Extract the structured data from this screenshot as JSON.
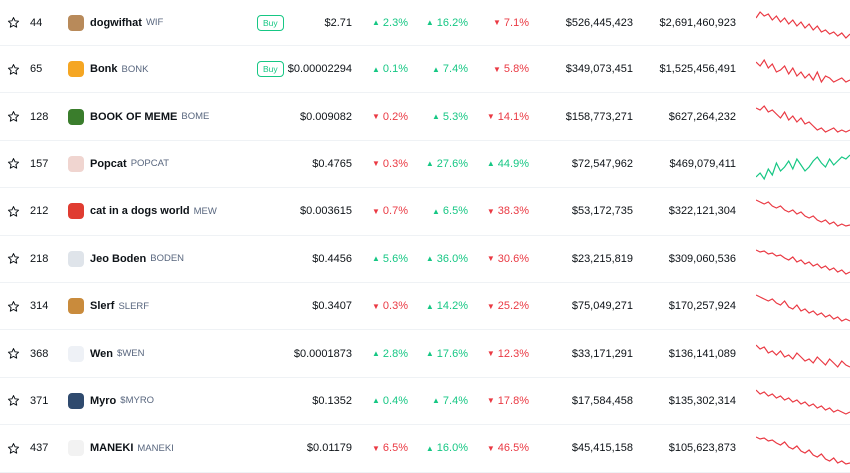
{
  "colors": {
    "up": "#16c784",
    "down": "#ea3943"
  },
  "rows": [
    {
      "rank": "44",
      "name": "dogwifhat",
      "symbol": "WIF",
      "buy": "Buy",
      "price": "$2.71",
      "h1": "2.3%",
      "h1dir": "up",
      "h24": "16.2%",
      "h24dir": "up",
      "d7": "7.1%",
      "d7dir": "down",
      "mcap": "$526,445,423",
      "vol": "$2,691,460,923",
      "logo_color": "#b88a5a",
      "logo_icon": "dog-hat-icon",
      "trend": "down",
      "spark": [
        12,
        6,
        10,
        8,
        14,
        10,
        16,
        12,
        18,
        14,
        20,
        16,
        22,
        18,
        24,
        20,
        26,
        24,
        28,
        26,
        30,
        27,
        32,
        28
      ]
    },
    {
      "rank": "65",
      "name": "Bonk",
      "symbol": "BONK",
      "buy": "Buy",
      "price": "$0.00002294",
      "h1": "0.1%",
      "h1dir": "up",
      "h24": "7.4%",
      "h24dir": "up",
      "d7": "5.8%",
      "d7dir": "down",
      "mcap": "$349,073,451",
      "vol": "$1,525,456,491",
      "logo_color": "#f5a623",
      "logo_icon": "shiba-dog-icon",
      "trend": "down",
      "spark": [
        10,
        14,
        8,
        16,
        12,
        20,
        18,
        14,
        22,
        16,
        24,
        20,
        26,
        22,
        28,
        20,
        30,
        24,
        26,
        30,
        28,
        26,
        30,
        28
      ]
    },
    {
      "rank": "128",
      "name": "BOOK OF MEME",
      "symbol": "BOME",
      "buy": "",
      "price": "$0.009082",
      "h1": "0.2%",
      "h1dir": "down",
      "h24": "5.3%",
      "h24dir": "up",
      "d7": "14.1%",
      "d7dir": "down",
      "mcap": "$158,773,271",
      "vol": "$627,264,232",
      "logo_color": "#3a7d2c",
      "logo_icon": "pepe-frog-icon",
      "trend": "down",
      "spark": [
        8,
        10,
        6,
        12,
        10,
        14,
        18,
        12,
        20,
        16,
        22,
        18,
        24,
        22,
        26,
        30,
        28,
        32,
        30,
        28,
        32,
        30,
        32,
        30
      ]
    },
    {
      "rank": "157",
      "name": "Popcat",
      "symbol": "POPCAT",
      "buy": "",
      "price": "$0.4765",
      "h1": "0.3%",
      "h1dir": "down",
      "h24": "27.6%",
      "h24dir": "up",
      "d7": "44.9%",
      "d7dir": "up",
      "mcap": "$72,547,962",
      "vol": "$469,079,411",
      "logo_color": "#f0d5d0",
      "logo_icon": "cat-face-icon",
      "trend": "up",
      "spark": [
        30,
        26,
        32,
        22,
        28,
        16,
        24,
        20,
        14,
        22,
        12,
        18,
        24,
        20,
        14,
        10,
        16,
        20,
        12,
        18,
        14,
        10,
        12,
        8
      ]
    },
    {
      "rank": "212",
      "name": "cat in a dogs world",
      "symbol": "MEW",
      "buy": "",
      "price": "$0.003615",
      "h1": "0.7%",
      "h1dir": "down",
      "h24": "6.5%",
      "h24dir": "up",
      "d7": "38.3%",
      "d7dir": "down",
      "mcap": "$53,172,735",
      "vol": "$322,121,304",
      "logo_color": "#e03c31",
      "logo_icon": "cat-mask-icon",
      "trend": "down",
      "spark": [
        6,
        8,
        10,
        8,
        12,
        14,
        12,
        16,
        18,
        16,
        20,
        18,
        22,
        24,
        22,
        26,
        28,
        26,
        30,
        28,
        32,
        30,
        32,
        31
      ]
    },
    {
      "rank": "218",
      "name": "Jeo Boden",
      "symbol": "BODEN",
      "buy": "",
      "price": "$0.4456",
      "h1": "5.6%",
      "h1dir": "up",
      "h24": "36.0%",
      "h24dir": "up",
      "d7": "30.6%",
      "d7dir": "down",
      "mcap": "$23,215,819",
      "vol": "$309,060,536",
      "logo_color": "#dfe4ea",
      "logo_icon": "person-suit-icon",
      "trend": "down",
      "spark": [
        8,
        10,
        9,
        12,
        11,
        14,
        13,
        16,
        18,
        15,
        20,
        18,
        22,
        20,
        24,
        22,
        26,
        24,
        28,
        26,
        30,
        28,
        32,
        30
      ]
    },
    {
      "rank": "314",
      "name": "Slerf",
      "symbol": "SLERF",
      "buy": "",
      "price": "$0.3407",
      "h1": "0.3%",
      "h1dir": "down",
      "h24": "14.2%",
      "h24dir": "up",
      "d7": "25.2%",
      "d7dir": "down",
      "mcap": "$75,049,271",
      "vol": "$170,257,924",
      "logo_color": "#c98b3c",
      "logo_icon": "sloth-icon",
      "trend": "down",
      "spark": [
        6,
        8,
        10,
        12,
        10,
        14,
        16,
        12,
        18,
        20,
        16,
        22,
        20,
        24,
        22,
        26,
        24,
        28,
        26,
        30,
        28,
        32,
        30,
        32
      ]
    },
    {
      "rank": "368",
      "name": "Wen",
      "symbol": "$WEN",
      "buy": "",
      "price": "$0.0001873",
      "h1": "2.8%",
      "h1dir": "up",
      "h24": "17.6%",
      "h24dir": "up",
      "d7": "12.3%",
      "d7dir": "down",
      "mcap": "$33,171,291",
      "vol": "$136,141,089",
      "logo_color": "#eef1f6",
      "logo_icon": "wen-cat-icon",
      "trend": "down",
      "spark": [
        8,
        12,
        10,
        16,
        14,
        18,
        14,
        20,
        18,
        22,
        16,
        20,
        24,
        22,
        26,
        20,
        24,
        28,
        22,
        26,
        30,
        24,
        28,
        30
      ]
    },
    {
      "rank": "371",
      "name": "Myro",
      "symbol": "$MYRO",
      "buy": "",
      "price": "$0.1352",
      "h1": "0.4%",
      "h1dir": "up",
      "h24": "7.4%",
      "h24dir": "up",
      "d7": "17.8%",
      "d7dir": "down",
      "mcap": "$17,584,458",
      "vol": "$135,302,314",
      "logo_color": "#2f4a6e",
      "logo_icon": "dog-circle-icon",
      "trend": "down",
      "spark": [
        6,
        10,
        8,
        12,
        10,
        14,
        12,
        16,
        14,
        18,
        16,
        20,
        18,
        22,
        20,
        24,
        22,
        26,
        24,
        28,
        26,
        28,
        30,
        28
      ]
    },
    {
      "rank": "437",
      "name": "MANEKI",
      "symbol": "MANEKI",
      "buy": "",
      "price": "$0.01179",
      "h1": "6.5%",
      "h1dir": "down",
      "h24": "16.0%",
      "h24dir": "up",
      "d7": "46.5%",
      "d7dir": "down",
      "mcap": "$45,415,158",
      "vol": "$105,623,873",
      "logo_color": "#f2f2f2",
      "logo_icon": "lucky-cat-icon",
      "trend": "down",
      "spark": [
        6,
        8,
        7,
        10,
        9,
        12,
        14,
        11,
        16,
        18,
        15,
        20,
        22,
        19,
        24,
        26,
        23,
        28,
        30,
        27,
        32,
        30,
        33,
        32
      ]
    }
  ]
}
